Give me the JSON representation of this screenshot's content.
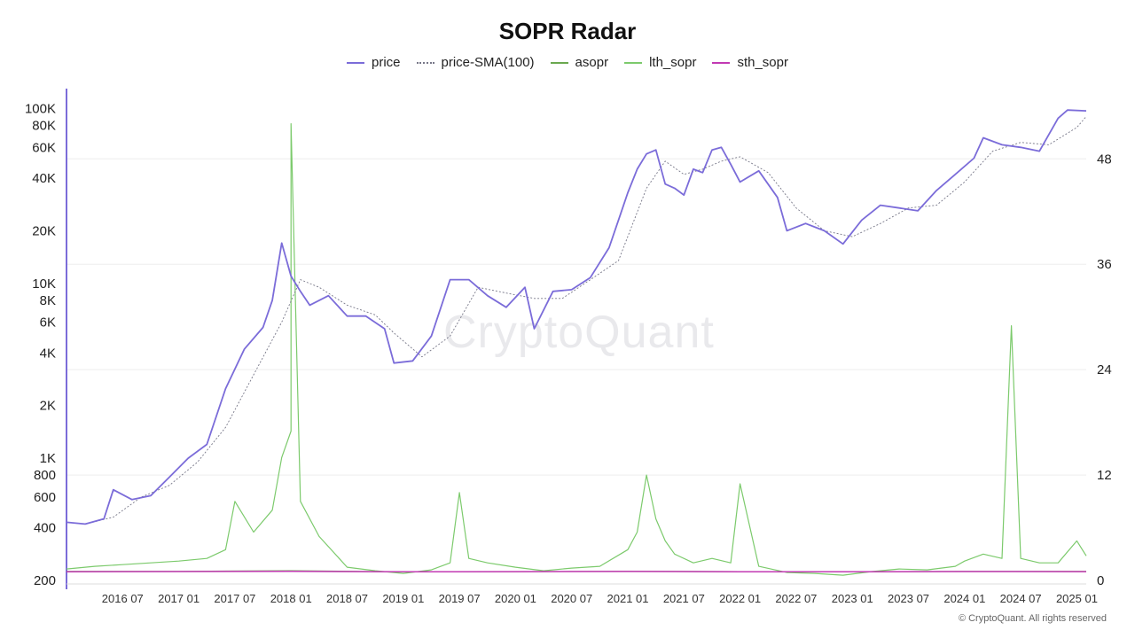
{
  "page": {
    "title": "SOPR Radar",
    "watermark": "CryptoQuant",
    "footer": "© CryptoQuant. All rights reserved"
  },
  "colors": {
    "price": "#7b6cd9",
    "price_sma": "#777788",
    "asopr": "#6aa84f",
    "lth_sopr": "#7cca6c",
    "sth_sopr": "#c239b3",
    "grid": "#eeeeee",
    "left_axis_line": "#7b6cd9"
  },
  "chart_data": {
    "type": "line",
    "title": "SOPR Radar",
    "legend": {
      "placement": "top-center",
      "entries": [
        "price",
        "price-SMA(100)",
        "asopr",
        "lth_sopr",
        "sth_sopr"
      ]
    },
    "x_axis": {
      "tick_labels": [
        "2016 07",
        "2017 01",
        "2017 07",
        "2018 01",
        "2018 07",
        "2019 01",
        "2019 07",
        "2020 01",
        "2020 07",
        "2021 01",
        "2021 07",
        "2022 01",
        "2022 07",
        "2023 01",
        "2023 07",
        "2024 01",
        "2024 07",
        "2025 01"
      ],
      "range": [
        "2016-01",
        "2025-02"
      ]
    },
    "y_left": {
      "scale": "log",
      "tick_labels": [
        "100K",
        "80K",
        "60K",
        "40K",
        "20K",
        "10K",
        "8K",
        "6K",
        "4K",
        "2K",
        "1K",
        "800",
        "600",
        "400",
        "200"
      ],
      "tick_values": [
        100000,
        80000,
        60000,
        40000,
        20000,
        10000,
        8000,
        6000,
        4000,
        2000,
        1000,
        800,
        600,
        400,
        200
      ],
      "range": [
        200,
        130000
      ]
    },
    "y_right": {
      "scale": "linear",
      "tick_labels": [
        "0",
        "12",
        "24",
        "36",
        "48"
      ],
      "tick_values": [
        0,
        12,
        24,
        36,
        48
      ],
      "range": [
        0,
        56
      ]
    },
    "grid": true,
    "series": [
      {
        "name": "price",
        "axis": "left",
        "x": [
          "2016-01",
          "2016-03",
          "2016-05",
          "2016-06",
          "2016-08",
          "2016-10",
          "2016-12",
          "2017-02",
          "2017-04",
          "2017-06",
          "2017-08",
          "2017-10",
          "2017-11",
          "2017-12",
          "2018-01",
          "2018-02",
          "2018-03",
          "2018-05",
          "2018-07",
          "2018-09",
          "2018-11",
          "2018-12",
          "2019-02",
          "2019-04",
          "2019-06",
          "2019-08",
          "2019-10",
          "2019-12",
          "2020-02",
          "2020-03",
          "2020-05",
          "2020-07",
          "2020-09",
          "2020-11",
          "2020-12",
          "2021-01",
          "2021-02",
          "2021-03",
          "2021-04",
          "2021-05",
          "2021-06",
          "2021-07",
          "2021-08",
          "2021-09",
          "2021-10",
          "2021-11",
          "2021-12",
          "2022-01",
          "2022-03",
          "2022-05",
          "2022-06",
          "2022-08",
          "2022-10",
          "2022-12",
          "2023-02",
          "2023-04",
          "2023-06",
          "2023-08",
          "2023-10",
          "2023-12",
          "2024-02",
          "2024-03",
          "2024-05",
          "2024-07",
          "2024-09",
          "2024-11",
          "2024-12",
          "2025-02"
        ],
        "y": [
          430,
          420,
          450,
          660,
          580,
          610,
          780,
          1000,
          1200,
          2500,
          4200,
          5600,
          8000,
          17000,
          11000,
          9000,
          7500,
          8500,
          6500,
          6500,
          5500,
          3500,
          3600,
          5000,
          10500,
          10500,
          8500,
          7300,
          9500,
          5500,
          9000,
          9200,
          10800,
          16000,
          23000,
          33000,
          45000,
          55000,
          58000,
          37000,
          35000,
          32000,
          45000,
          43000,
          58000,
          60000,
          48000,
          38000,
          44000,
          31000,
          20000,
          22000,
          20000,
          16800,
          23000,
          28000,
          27000,
          26000,
          34000,
          42000,
          52000,
          68000,
          62000,
          60000,
          57000,
          88000,
          98000,
          97000
        ]
      },
      {
        "name": "price-SMA(100)",
        "axis": "left",
        "x": [
          "2016-03",
          "2016-06",
          "2016-09",
          "2016-12",
          "2017-03",
          "2017-06",
          "2017-09",
          "2017-12",
          "2018-02",
          "2018-04",
          "2018-07",
          "2018-10",
          "2018-12",
          "2019-03",
          "2019-06",
          "2019-09",
          "2019-12",
          "2020-03",
          "2020-06",
          "2020-09",
          "2020-12",
          "2021-03",
          "2021-05",
          "2021-07",
          "2021-09",
          "2021-11",
          "2022-01",
          "2022-04",
          "2022-07",
          "2022-10",
          "2023-01",
          "2023-04",
          "2023-07",
          "2023-10",
          "2024-01",
          "2024-04",
          "2024-07",
          "2024-10",
          "2025-01",
          "2025-02"
        ],
        "y": [
          420,
          460,
          600,
          700,
          950,
          1500,
          3000,
          6000,
          10500,
          9500,
          7500,
          6600,
          5200,
          3800,
          5000,
          9500,
          8800,
          8200,
          8200,
          10500,
          13500,
          35000,
          50000,
          42000,
          45000,
          50000,
          53000,
          43000,
          27000,
          20000,
          18500,
          22000,
          27000,
          28000,
          38000,
          57000,
          64000,
          62000,
          78000,
          90000
        ]
      },
      {
        "name": "asopr",
        "axis": "right",
        "x": [
          "2016-01",
          "2017-01",
          "2018-01",
          "2019-01",
          "2020-01",
          "2021-01",
          "2022-01",
          "2023-01",
          "2024-01",
          "2025-02"
        ],
        "y": [
          1.02,
          1.03,
          1.1,
          0.97,
          1.0,
          1.04,
          1.0,
          0.97,
          1.03,
          1.02
        ]
      },
      {
        "name": "lth_sopr",
        "axis": "right",
        "x": [
          "2016-01",
          "2016-04",
          "2016-07",
          "2016-10",
          "2017-01",
          "2017-04",
          "2017-06",
          "2017-07",
          "2017-09",
          "2017-11",
          "2017-12",
          "2018-01",
          "2018-01",
          "2018-02",
          "2018-04",
          "2018-07",
          "2018-10",
          "2019-01",
          "2019-04",
          "2019-06",
          "2019-07",
          "2019-08",
          "2019-10",
          "2020-01",
          "2020-04",
          "2020-07",
          "2020-10",
          "2021-01",
          "2021-02",
          "2021-03",
          "2021-04",
          "2021-05",
          "2021-06",
          "2021-08",
          "2021-10",
          "2021-12",
          "2022-01",
          "2022-03",
          "2022-06",
          "2022-09",
          "2022-12",
          "2023-03",
          "2023-06",
          "2023-09",
          "2023-12",
          "2024-01",
          "2024-03",
          "2024-05",
          "2024-06",
          "2024-07",
          "2024-09",
          "2024-11",
          "2025-01",
          "2025-02"
        ],
        "y": [
          1.3,
          1.6,
          1.8,
          2.0,
          2.2,
          2.5,
          3.5,
          9,
          5.5,
          8,
          14,
          17,
          52,
          9,
          5,
          1.5,
          1.1,
          0.8,
          1.2,
          2.0,
          10,
          2.5,
          2.0,
          1.5,
          1.1,
          1.4,
          1.6,
          3.5,
          5.5,
          12,
          7,
          4.5,
          3,
          2,
          2.5,
          2,
          11,
          1.6,
          0.9,
          0.8,
          0.6,
          1.0,
          1.3,
          1.2,
          1.6,
          2.2,
          3.0,
          2.5,
          29,
          2.5,
          2.0,
          2.0,
          4.5,
          2.8
        ]
      },
      {
        "name": "sth_sopr",
        "axis": "right",
        "x": [
          "2016-01",
          "2017-01",
          "2018-01",
          "2019-01",
          "2020-01",
          "2021-01",
          "2022-01",
          "2023-01",
          "2024-01",
          "2025-02"
        ],
        "y": [
          0.99,
          1.01,
          1.03,
          0.98,
          1.0,
          1.02,
          0.99,
          0.98,
          1.01,
          1.0
        ]
      }
    ]
  }
}
